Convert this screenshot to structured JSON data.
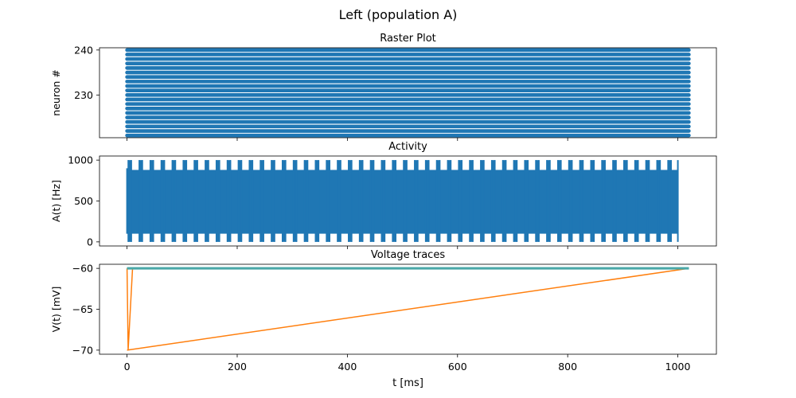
{
  "figure": {
    "suptitle": "Left (population A)"
  },
  "chart_data": [
    {
      "type": "scatter",
      "title": "Raster Plot",
      "xlabel": "",
      "ylabel": "neuron #",
      "xlim": [
        -50,
        1070
      ],
      "ylim": [
        220.5,
        240.5
      ],
      "yticks": [
        230,
        240
      ],
      "xticks": [
        0,
        200,
        400,
        600,
        800,
        1000
      ],
      "color": "#1f77b4",
      "spike_time_range": [
        0,
        1020
      ],
      "neurons": [
        221,
        222,
        223,
        224,
        225,
        226,
        227,
        228,
        229,
        230,
        231,
        232,
        233,
        234,
        235,
        236,
        237,
        238,
        239,
        240
      ]
    },
    {
      "type": "line",
      "title": "Activity",
      "xlabel": "",
      "ylabel": "A(t) [Hz]",
      "xlim": [
        -50,
        1070
      ],
      "ylim": [
        -50,
        1050
      ],
      "yticks": [
        0,
        500,
        1000
      ],
      "xticks": [
        0,
        200,
        400,
        600,
        800,
        1000
      ],
      "color": "#1f77b4",
      "t_range": [
        0,
        1000
      ],
      "oscillation_period_ms": 20,
      "peak": 1000,
      "trough": 0
    },
    {
      "type": "line",
      "title": "Voltage traces",
      "xlabel": "t [ms]",
      "ylabel": "V(t) [mV]",
      "xlim": [
        -50,
        1070
      ],
      "ylim": [
        -70.5,
        -59.5
      ],
      "yticks": [
        -60,
        -65,
        -70
      ],
      "xticks": [
        0,
        200,
        400,
        600,
        800,
        1000
      ],
      "series": [
        {
          "color": "#ff7f0e",
          "x": [
            0,
            2,
            10,
            1020
          ],
          "y": [
            -60,
            -70,
            -60,
            -60
          ]
        },
        {
          "color": "#ff7f0e",
          "x": [
            0,
            1020
          ],
          "y": [
            -70,
            -60
          ]
        },
        {
          "color": "#2ca02c",
          "x": [
            0,
            1020
          ],
          "y": [
            -60,
            -60
          ]
        },
        {
          "color": "#1f77b4",
          "x": [
            0,
            1020
          ],
          "y": [
            -60,
            -60
          ]
        },
        {
          "color": "#17becf",
          "x": [
            0,
            1020
          ],
          "y": [
            -60,
            -60
          ]
        }
      ]
    }
  ]
}
